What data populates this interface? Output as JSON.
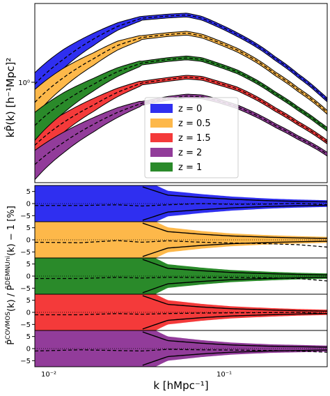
{
  "chart_data": {
    "type": "area",
    "xscale": "log",
    "xlim": [
      0.008,
      0.45
    ],
    "xlabel": "k [hMpc⁻¹]",
    "x_tick_labels": [
      "10⁻²",
      "10⁻¹"
    ],
    "top": {
      "ylabel": "kP̂(k) [h⁻¹Mpc]²",
      "yscale": "log",
      "y_tick_labels": [
        "10⁰"
      ],
      "legend_location": "lower-center",
      "series": [
        {
          "name": "z = 0",
          "color": "#2f2ff0",
          "x": [
            0.008,
            0.012,
            0.018,
            0.025,
            0.035,
            0.05,
            0.065,
            0.08,
            0.1,
            0.13,
            0.17,
            0.22,
            0.3,
            0.4,
            0.45
          ],
          "y": [
            1.0,
            1.5,
            2.05,
            2.5,
            2.85,
            2.95,
            3.0,
            2.85,
            2.55,
            2.2,
            1.85,
            1.5,
            1.15,
            0.88,
            0.78
          ],
          "band_low_x": [
            0.008,
            0.012,
            0.018,
            0.025,
            0.035
          ],
          "band_low_y": [
            0.82,
            1.3,
            1.85,
            2.35,
            2.75
          ],
          "band_high_x": [
            0.008,
            0.012,
            0.018,
            0.025,
            0.035
          ],
          "band_high_y": [
            1.2,
            1.75,
            2.25,
            2.65,
            2.95
          ]
        },
        {
          "name": "z = 0.5",
          "color": "#fdb84a",
          "x": [
            0.008,
            0.012,
            0.018,
            0.025,
            0.035,
            0.05,
            0.065,
            0.08,
            0.1,
            0.13,
            0.17,
            0.22,
            0.3,
            0.4,
            0.45
          ],
          "y": [
            0.75,
            1.12,
            1.5,
            1.85,
            2.1,
            2.2,
            2.25,
            2.15,
            1.95,
            1.72,
            1.45,
            1.18,
            0.92,
            0.72,
            0.64
          ],
          "band_low_x": [
            0.008,
            0.012,
            0.018,
            0.025,
            0.035
          ],
          "band_low_y": [
            0.6,
            0.96,
            1.35,
            1.72,
            2.02
          ],
          "band_high_x": [
            0.008,
            0.012,
            0.018,
            0.025,
            0.035
          ],
          "band_high_y": [
            0.92,
            1.3,
            1.65,
            1.98,
            2.18
          ]
        },
        {
          "name": "z = 1.5",
          "color": "#f43a3a",
          "x": [
            0.008,
            0.012,
            0.018,
            0.025,
            0.035,
            0.05,
            0.065,
            0.08,
            0.1,
            0.13,
            0.17,
            0.22,
            0.3,
            0.4,
            0.45
          ],
          "y": [
            0.38,
            0.55,
            0.72,
            0.88,
            1.02,
            1.08,
            1.12,
            1.1,
            1.02,
            0.93,
            0.8,
            0.67,
            0.54,
            0.44,
            0.4
          ],
          "band_low_x": [
            0.008,
            0.012,
            0.018,
            0.025,
            0.035
          ],
          "band_low_y": [
            0.3,
            0.47,
            0.65,
            0.82,
            0.98
          ],
          "band_high_x": [
            0.008,
            0.012,
            0.018,
            0.025,
            0.035
          ],
          "band_high_y": [
            0.47,
            0.63,
            0.8,
            0.94,
            1.06
          ]
        },
        {
          "name": "z = 2",
          "color": "#923c9a",
          "x": [
            0.008,
            0.012,
            0.018,
            0.025,
            0.035,
            0.05,
            0.065,
            0.08,
            0.1,
            0.13,
            0.17,
            0.22,
            0.3,
            0.4,
            0.45
          ],
          "y": [
            0.28,
            0.4,
            0.53,
            0.64,
            0.74,
            0.8,
            0.83,
            0.82,
            0.77,
            0.7,
            0.61,
            0.52,
            0.43,
            0.36,
            0.33
          ],
          "band_low_x": [
            0.008,
            0.012,
            0.018,
            0.025,
            0.035
          ],
          "band_low_y": [
            0.22,
            0.34,
            0.47,
            0.59,
            0.71
          ],
          "band_high_x": [
            0.008,
            0.012,
            0.018,
            0.025,
            0.035
          ],
          "band_high_y": [
            0.35,
            0.47,
            0.59,
            0.69,
            0.77
          ]
        },
        {
          "name": "z = 1",
          "color": "#2a8a2a",
          "x": [
            0.008,
            0.012,
            0.018,
            0.025,
            0.035,
            0.05,
            0.065,
            0.08,
            0.1,
            0.13,
            0.17,
            0.22,
            0.3,
            0.4,
            0.45
          ],
          "y": [
            0.52,
            0.76,
            1.0,
            1.22,
            1.4,
            1.48,
            1.52,
            1.48,
            1.36,
            1.22,
            1.04,
            0.86,
            0.68,
            0.54,
            0.49
          ],
          "band_low_x": [
            0.008,
            0.012,
            0.018,
            0.025,
            0.035
          ],
          "band_low_y": [
            0.41,
            0.64,
            0.9,
            1.13,
            1.34
          ],
          "band_high_x": [
            0.008,
            0.012,
            0.018,
            0.025,
            0.035
          ],
          "band_high_y": [
            0.64,
            0.88,
            1.1,
            1.3,
            1.46
          ]
        }
      ]
    },
    "ratio": {
      "ylabel": "P̂COVMOS(k) / P̂DEMNUni(k) − 1 [%]",
      "ylabel_parts": [
        "P̂",
        "COVMOS",
        "(k) / P̂",
        "DEMNUni",
        "(k) − 1 [%]"
      ],
      "ylim": [
        -7.5,
        7.5
      ],
      "y_ticks": [
        5,
        0,
        -5
      ],
      "y_tick_labels": [
        "5",
        "0",
        "−5"
      ],
      "panel_order": [
        "z = 0",
        "z = 0.5",
        "z = 1",
        "z = 1.5",
        "z = 2"
      ],
      "panels": [
        {
          "series": "z = 0",
          "color": "#2f2ff0",
          "mean_x": [
            0.008,
            0.015,
            0.025,
            0.035,
            0.05,
            0.08,
            0.12,
            0.2,
            0.3,
            0.45
          ],
          "mean_y": [
            -0.8,
            -0.8,
            -0.5,
            -1.0,
            -0.5,
            0.0,
            -0.3,
            -0.2,
            0.1,
            -0.5
          ],
          "black_band_x": [
            0.035,
            0.05,
            0.08,
            0.12,
            0.2,
            0.3,
            0.45
          ],
          "black_band_y": [
            7.0,
            3.5,
            2.5,
            1.8,
            1.2,
            0.9,
            0.7
          ]
        },
        {
          "series": "z = 0.5",
          "color": "#fdb84a",
          "mean_x": [
            0.008,
            0.015,
            0.025,
            0.035,
            0.05,
            0.08,
            0.12,
            0.2,
            0.3,
            0.45
          ],
          "mean_y": [
            -1.0,
            -1.2,
            -0.3,
            -1.0,
            -0.4,
            -1.0,
            -1.3,
            -1.6,
            -2.0,
            -3.0
          ],
          "black_band_x": [
            0.035,
            0.05,
            0.08,
            0.12,
            0.2,
            0.3,
            0.45
          ],
          "black_band_y": [
            7.0,
            3.4,
            2.3,
            1.6,
            1.1,
            0.8,
            0.6
          ]
        },
        {
          "series": "z = 1",
          "color": "#2a8a2a",
          "mean_x": [
            0.008,
            0.015,
            0.025,
            0.035,
            0.05,
            0.08,
            0.12,
            0.2,
            0.3,
            0.45
          ],
          "mean_y": [
            -1.0,
            -1.0,
            -0.5,
            -0.8,
            -0.5,
            -0.6,
            -0.6,
            -0.7,
            -1.0,
            -2.0
          ],
          "black_band_x": [
            0.035,
            0.05,
            0.08,
            0.12,
            0.2,
            0.3,
            0.45
          ],
          "black_band_y": [
            7.0,
            3.2,
            2.2,
            1.5,
            1.0,
            0.7,
            0.5
          ]
        },
        {
          "series": "z = 1.5",
          "color": "#f43a3a",
          "mean_x": [
            0.008,
            0.015,
            0.025,
            0.035,
            0.05,
            0.08,
            0.12,
            0.2,
            0.3,
            0.45
          ],
          "mean_y": [
            -1.0,
            -1.0,
            -0.5,
            -0.8,
            -0.5,
            -0.3,
            -0.2,
            -0.1,
            0.0,
            -0.5
          ],
          "black_band_x": [
            0.035,
            0.05,
            0.08,
            0.12,
            0.2,
            0.3,
            0.45
          ],
          "black_band_y": [
            7.0,
            3.3,
            2.2,
            1.5,
            1.0,
            0.7,
            0.5
          ]
        },
        {
          "series": "z = 2",
          "color": "#923c9a",
          "mean_x": [
            0.008,
            0.015,
            0.025,
            0.035,
            0.05,
            0.08,
            0.12,
            0.2,
            0.3,
            0.45
          ],
          "mean_y": [
            -1.0,
            -0.5,
            -0.8,
            -1.0,
            -0.3,
            -0.5,
            -0.6,
            -0.8,
            -1.0,
            -1.5
          ],
          "black_band_x": [
            0.035,
            0.05,
            0.08,
            0.12,
            0.2,
            0.3,
            0.45
          ],
          "black_band_y": [
            7.0,
            3.3,
            2.2,
            1.5,
            1.0,
            0.8,
            0.6
          ]
        }
      ]
    }
  }
}
